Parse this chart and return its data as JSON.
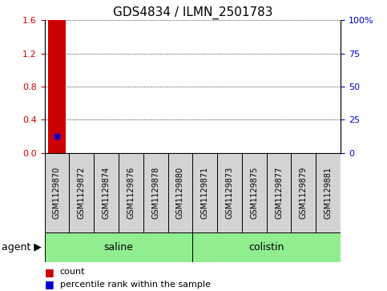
{
  "title": "GDS4834 / ILMN_2501783",
  "samples": [
    "GSM1129870",
    "GSM1129872",
    "GSM1129874",
    "GSM1129876",
    "GSM1129878",
    "GSM1129880",
    "GSM1129871",
    "GSM1129873",
    "GSM1129875",
    "GSM1129877",
    "GSM1129879",
    "GSM1129881"
  ],
  "count_values": [
    1.6,
    0,
    0,
    0,
    0,
    0,
    0,
    0,
    0,
    0,
    0,
    0
  ],
  "percentile_value": 12.5,
  "percentile_sample_index": 0,
  "bar_color": "#cc0000",
  "dot_color": "#0000cc",
  "left_ylim": [
    0,
    1.6
  ],
  "right_ylim": [
    0,
    100
  ],
  "left_yticks": [
    0,
    0.4,
    0.8,
    1.2,
    1.6
  ],
  "right_yticks": [
    0,
    25,
    50,
    75,
    100
  ],
  "right_yticklabels": [
    "0",
    "25",
    "50",
    "75",
    "100%"
  ],
  "groups": [
    {
      "label": "saline",
      "start": 0,
      "end": 5,
      "color": "#90ee90"
    },
    {
      "label": "colistin",
      "start": 6,
      "end": 11,
      "color": "#90ee90"
    }
  ],
  "group_row_label": "agent",
  "legend_items": [
    {
      "label": "count",
      "color": "#cc0000"
    },
    {
      "label": "percentile rank within the sample",
      "color": "#0000cc"
    }
  ],
  "sample_box_color": "#d3d3d3",
  "background_color": "#ffffff",
  "title_fontsize": 11,
  "tick_fontsize": 8,
  "sample_fontsize": 7,
  "group_fontsize": 9,
  "legend_fontsize": 8,
  "bar_width": 0.7,
  "dot_markersize": 4
}
